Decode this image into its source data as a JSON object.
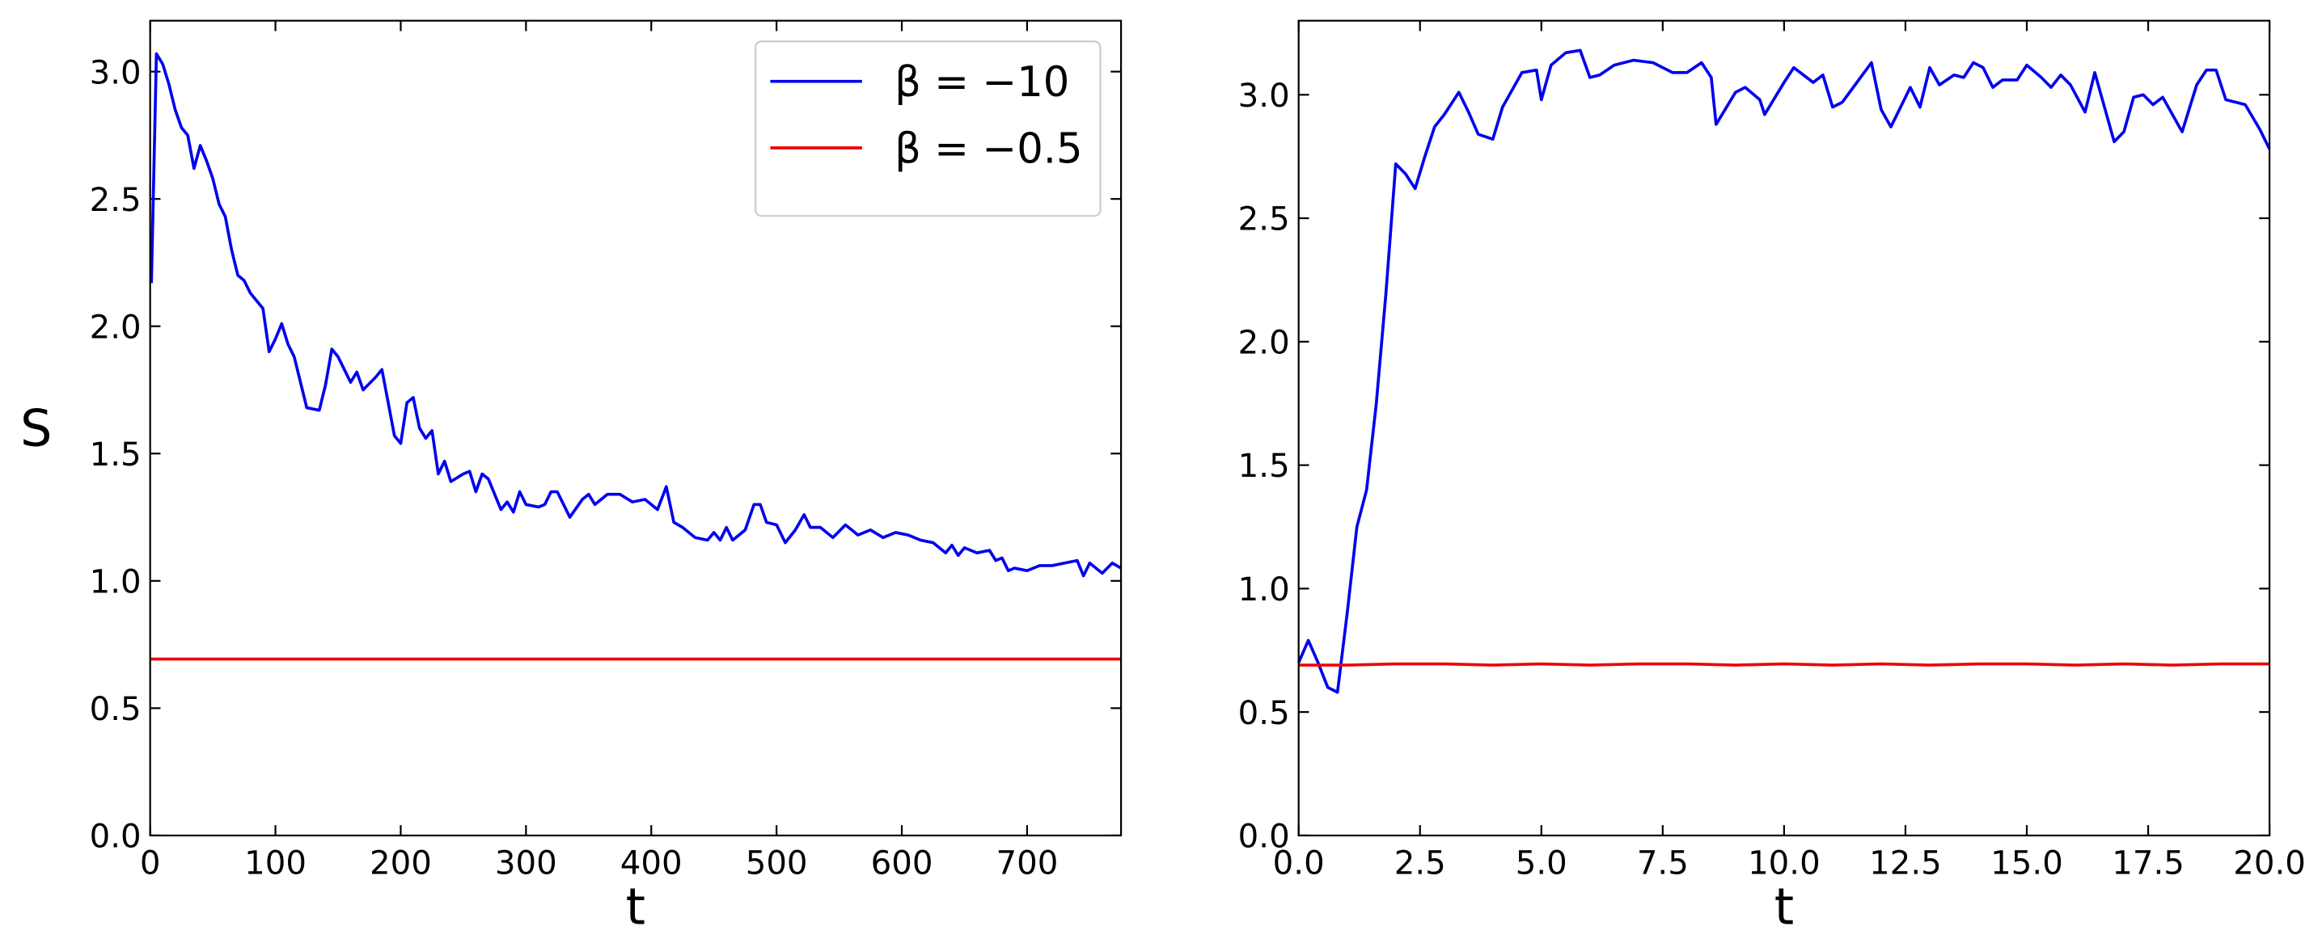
{
  "chart_data": [
    {
      "type": "line",
      "x": [
        1,
        5,
        10,
        15,
        20,
        25,
        30,
        35,
        40,
        45,
        50,
        55,
        60,
        65,
        70,
        75,
        80,
        90,
        95,
        100,
        105,
        110,
        115,
        120,
        125,
        135,
        140,
        145,
        150,
        160,
        165,
        170,
        180,
        185,
        190,
        195,
        200,
        205,
        210,
        215,
        220,
        225,
        230,
        235,
        240,
        250,
        255,
        260,
        265,
        270,
        280,
        285,
        290,
        295,
        300,
        310,
        315,
        320,
        325,
        335,
        345,
        350,
        355,
        365,
        375,
        385,
        395,
        405,
        412,
        418,
        425,
        435,
        445,
        450,
        455,
        460,
        465,
        475,
        482,
        487,
        492,
        500,
        507,
        515,
        522,
        527,
        535,
        545,
        555,
        565,
        575,
        585,
        595,
        605,
        615,
        625,
        635,
        640,
        645,
        650,
        660,
        670,
        675,
        680,
        685,
        690,
        700,
        710,
        720,
        740,
        745,
        750,
        760,
        768,
        775
      ],
      "series": [
        {
          "name": "β = −10",
          "color": "#0000ee",
          "values": [
            2.17,
            3.07,
            3.03,
            2.95,
            2.85,
            2.78,
            2.75,
            2.62,
            2.71,
            2.65,
            2.58,
            2.48,
            2.43,
            2.3,
            2.2,
            2.18,
            2.13,
            2.07,
            1.9,
            1.95,
            2.01,
            1.93,
            1.88,
            1.78,
            1.68,
            1.67,
            1.77,
            1.91,
            1.88,
            1.78,
            1.82,
            1.75,
            1.8,
            1.83,
            1.7,
            1.57,
            1.54,
            1.7,
            1.72,
            1.6,
            1.56,
            1.59,
            1.42,
            1.47,
            1.39,
            1.42,
            1.43,
            1.35,
            1.42,
            1.4,
            1.28,
            1.31,
            1.27,
            1.35,
            1.3,
            1.29,
            1.3,
            1.35,
            1.35,
            1.25,
            1.32,
            1.34,
            1.3,
            1.34,
            1.34,
            1.31,
            1.32,
            1.28,
            1.37,
            1.23,
            1.21,
            1.17,
            1.16,
            1.19,
            1.16,
            1.21,
            1.16,
            1.2,
            1.3,
            1.3,
            1.23,
            1.22,
            1.15,
            1.2,
            1.26,
            1.21,
            1.21,
            1.17,
            1.22,
            1.18,
            1.2,
            1.17,
            1.19,
            1.18,
            1.16,
            1.15,
            1.11,
            1.14,
            1.1,
            1.13,
            1.11,
            1.12,
            1.08,
            1.09,
            1.04,
            1.05,
            1.04,
            1.06,
            1.06,
            1.08,
            1.02,
            1.07,
            1.03,
            1.07,
            1.05
          ]
        },
        {
          "name": "β = −0.5",
          "color": "#ee0000",
          "x": [
            0,
            775
          ],
          "values": [
            0.693,
            0.693
          ]
        }
      ],
      "xlim": [
        0,
        775
      ],
      "ylim": [
        0,
        3.2
      ],
      "xticks": [
        0,
        100,
        200,
        300,
        400,
        500,
        600,
        700
      ],
      "yticks": [
        {
          "value": 0,
          "label": "0.0"
        },
        {
          "value": 0.5,
          "label": "0.5"
        },
        {
          "value": 1,
          "label": "1.0"
        },
        {
          "value": 1.5,
          "label": "1.5"
        },
        {
          "value": 2,
          "label": "2.0"
        },
        {
          "value": 2.5,
          "label": "2.5"
        },
        {
          "value": 3,
          "label": "3.0"
        }
      ],
      "xlabel": "t",
      "ylabel": "S",
      "legend": "upper right"
    },
    {
      "type": "line",
      "x": [
        0,
        0.2,
        0.4,
        0.6,
        0.8,
        1.0,
        1.2,
        1.4,
        1.6,
        1.8,
        2.0,
        2.2,
        2.4,
        2.6,
        2.8,
        3.0,
        3.3,
        3.5,
        3.7,
        4.0,
        4.2,
        4.6,
        4.9,
        5.0,
        5.2,
        5.5,
        5.8,
        6.0,
        6.2,
        6.5,
        6.9,
        7.3,
        7.7,
        8.0,
        8.3,
        8.5,
        8.6,
        9.0,
        9.2,
        9.5,
        9.6,
        10.0,
        10.2,
        10.6,
        10.8,
        11.0,
        11.2,
        11.5,
        11.8,
        12.0,
        12.2,
        12.6,
        12.8,
        13.0,
        13.2,
        13.5,
        13.7,
        13.9,
        14.1,
        14.3,
        14.5,
        14.8,
        15.0,
        15.3,
        15.5,
        15.7,
        15.9,
        16.2,
        16.4,
        16.6,
        16.8,
        17.0,
        17.2,
        17.4,
        17.6,
        17.8,
        18.2,
        18.5,
        18.7,
        18.9,
        19.1,
        19.5,
        19.8,
        20.0
      ],
      "series": [
        {
          "color": "#0000ee",
          "values": [
            0.7,
            0.79,
            0.7,
            0.6,
            0.58,
            0.9,
            1.25,
            1.4,
            1.75,
            2.2,
            2.72,
            2.68,
            2.62,
            2.75,
            2.87,
            2.92,
            3.01,
            2.93,
            2.84,
            2.82,
            2.95,
            3.09,
            3.1,
            2.98,
            3.12,
            3.17,
            3.18,
            3.07,
            3.08,
            3.12,
            3.14,
            3.13,
            3.09,
            3.09,
            3.13,
            3.07,
            2.88,
            3.01,
            3.03,
            2.98,
            2.92,
            3.05,
            3.11,
            3.05,
            3.08,
            2.95,
            2.97,
            3.05,
            3.13,
            2.94,
            2.87,
            3.03,
            2.95,
            3.11,
            3.04,
            3.08,
            3.07,
            3.13,
            3.11,
            3.03,
            3.06,
            3.06,
            3.12,
            3.07,
            3.03,
            3.08,
            3.04,
            2.93,
            3.09,
            2.95,
            2.81,
            2.85,
            2.99,
            3.0,
            2.96,
            2.99,
            2.85,
            3.04,
            3.1,
            3.1,
            2.98,
            2.96,
            2.86,
            2.78
          ]
        },
        {
          "color": "#ee0000",
          "x": [
            0,
            1,
            2,
            3,
            4,
            5,
            6,
            7,
            8,
            9,
            10,
            11,
            12,
            13,
            14,
            15,
            16,
            17,
            18,
            19,
            20
          ],
          "values": [
            0.69,
            0.69,
            0.695,
            0.695,
            0.69,
            0.695,
            0.69,
            0.695,
            0.695,
            0.69,
            0.695,
            0.69,
            0.695,
            0.69,
            0.695,
            0.695,
            0.69,
            0.695,
            0.69,
            0.695,
            0.695
          ]
        }
      ],
      "xlim": [
        0,
        20
      ],
      "ylim": [
        0,
        3.3
      ],
      "xticks": [
        {
          "value": 0,
          "label": "0.0"
        },
        {
          "value": 2.5,
          "label": "2.5"
        },
        {
          "value": 5,
          "label": "5.0"
        },
        {
          "value": 7.5,
          "label": "7.5"
        },
        {
          "value": 10,
          "label": "10.0"
        },
        {
          "value": 12.5,
          "label": "12.5"
        },
        {
          "value": 15,
          "label": "15.0"
        },
        {
          "value": 17.5,
          "label": "17.5"
        },
        {
          "value": 20,
          "label": "20.0"
        }
      ],
      "yticks": [
        {
          "value": 0,
          "label": "0.0"
        },
        {
          "value": 0.5,
          "label": "0.5"
        },
        {
          "value": 1,
          "label": "1.0"
        },
        {
          "value": 1.5,
          "label": "1.5"
        },
        {
          "value": 2,
          "label": "2.0"
        },
        {
          "value": 2.5,
          "label": "2.5"
        },
        {
          "value": 3,
          "label": "3.0"
        }
      ],
      "xlabel": "t"
    }
  ]
}
